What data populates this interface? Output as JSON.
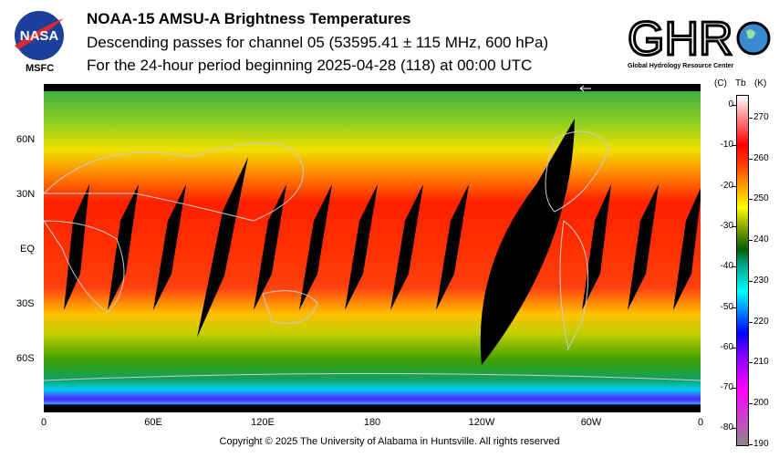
{
  "header": {
    "title": "NOAA-15 AMSU-A Brightness Temperatures",
    "subtitle": "Descending passes for channel 05 (53595.41 ± 115 MHz, 600 hPa)",
    "period": "For the 24-hour period beginning 2025-04-28 (118) at 00:00 UTC"
  },
  "logos": {
    "nasa": "NASA",
    "nasa_caption": "MSFC",
    "ghrc": "GHRC",
    "ghrc_caption": "Global Hydrology Resource Center"
  },
  "map": {
    "lat_labels": [
      "60N",
      "30N",
      "EQ",
      "30S",
      "60S"
    ],
    "lon_labels": [
      "0",
      "60E",
      "120E",
      "180",
      "120W",
      "60W",
      "0"
    ]
  },
  "colorbar": {
    "header_c": "(C)",
    "header_tb": "Tb",
    "header_k": "(K)",
    "celsius": [
      "0",
      "-10",
      "-20",
      "-30",
      "-40",
      "-50",
      "-60",
      "-70",
      "-80"
    ],
    "kelvin": [
      "270",
      "260",
      "250",
      "240",
      "230",
      "220",
      "210",
      "200",
      "190"
    ]
  },
  "footer": {
    "copyright": "Copyright © 2025 The University of Alabama in Huntsville.  All rights reserved"
  }
}
